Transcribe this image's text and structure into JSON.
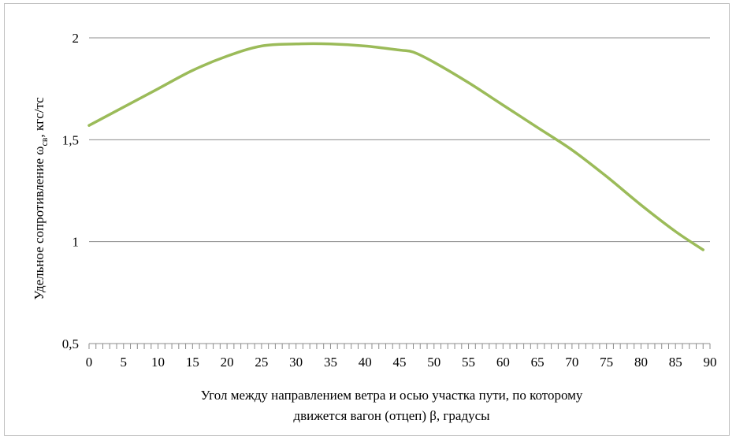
{
  "chart_data": {
    "type": "line",
    "xlabel_lines": [
      "Угол между направлением ветра и осью участка пути, по которому",
      "движется вагон (отцеп) β, градусы"
    ],
    "ylabel": {
      "main": "Удельное сопротивление ω",
      "subscript": "св",
      "unit": ", кгс/тс"
    },
    "xlim": [
      0,
      90
    ],
    "ylim": [
      0.5,
      2
    ],
    "x_ticks": [
      0,
      5,
      10,
      15,
      20,
      25,
      30,
      35,
      40,
      45,
      50,
      55,
      60,
      65,
      70,
      75,
      80,
      85,
      90
    ],
    "y_ticks": [
      {
        "value": 0.5,
        "label": "0,5"
      },
      {
        "value": 1,
        "label": "1"
      },
      {
        "value": 1.5,
        "label": "1,5"
      },
      {
        "value": 2,
        "label": "2"
      }
    ],
    "grid": "horizontal",
    "line_color": "#9bbb59",
    "series": [
      {
        "x": [
          0,
          5,
          10,
          15,
          20,
          25,
          30,
          35,
          40,
          45,
          47,
          50,
          55,
          60,
          65,
          70,
          75,
          80,
          85,
          89
        ],
        "values": [
          1.57,
          1.66,
          1.75,
          1.84,
          1.91,
          1.96,
          1.97,
          1.97,
          1.96,
          1.94,
          1.93,
          1.88,
          1.78,
          1.67,
          1.56,
          1.45,
          1.32,
          1.18,
          1.05,
          0.96
        ]
      }
    ]
  }
}
